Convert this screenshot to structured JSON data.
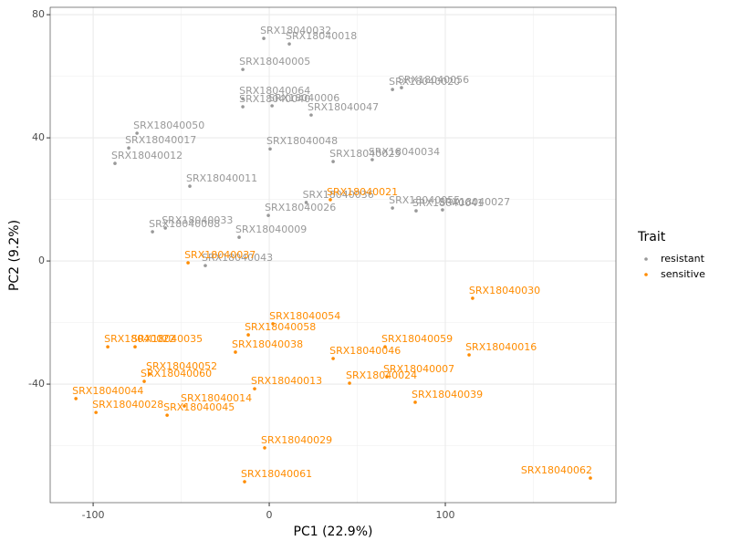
{
  "chart_data": {
    "type": "scatter",
    "xlabel": "PC1 (22.9%)",
    "ylabel": "PC2 (9.2%)",
    "legend_title": "Trait",
    "legend_position": "right",
    "grid": true,
    "xlim": [
      -124.4,
      196.9
    ],
    "ylim": [
      -78.5,
      82.4
    ],
    "xticks": [
      -100,
      0,
      100
    ],
    "yticks": [
      -40,
      0,
      40,
      80
    ],
    "series": [
      {
        "name": "resistant",
        "color": "#999999",
        "labels": [
          "SRX18040032",
          "SRX18040018",
          "SRX18040005",
          "SRX18040056",
          "SRX18040020",
          "SRX18040064",
          "SRX18040006",
          "SRX18040040",
          "SRX18040047",
          "SRX18040050",
          "SRX18040017",
          "SRX18040012",
          "SRX18040048",
          "SRX18040034",
          "SRX18040025",
          "SRX18040011",
          "SRX18040036",
          "SRX18040026",
          "SRX18040041",
          "SRX18040027",
          "SRX18040055",
          "SRX18040033",
          "SRX18040008",
          "SRX18040009",
          "SRX18040043"
        ],
        "x": [
          -3.1,
          11.4,
          -15.0,
          75.1,
          70.0,
          -15.0,
          1.6,
          -15.0,
          23.8,
          -75.1,
          -79.8,
          -87.6,
          0.5,
          58.5,
          36.3,
          -45.1,
          21.0,
          -0.5,
          83.4,
          98.4,
          70.0,
          -59.0,
          -66.3,
          -17.1,
          -36.3
        ],
        "values": [
          72.3,
          70.5,
          62.2,
          56.3,
          55.7,
          52.7,
          50.4,
          50.1,
          47.4,
          41.5,
          36.7,
          31.7,
          36.4,
          32.9,
          32.3,
          24.3,
          19.0,
          14.8,
          16.3,
          16.6,
          17.2,
          10.7,
          9.5,
          7.7,
          -1.5
        ]
      },
      {
        "name": "sensitive",
        "color": "#ff8c00",
        "labels": [
          "SRX18040021",
          "SRX18040037",
          "SRX18040030",
          "SRX18040054",
          "SRX18040058",
          "SRX18040059",
          "SRX18040046",
          "SRX18040016",
          "SRX18040038",
          "SRX18040022",
          "SRX18040035",
          "SRX18040052",
          "SRX18040060",
          "SRX18040044",
          "SRX18040028",
          "SRX18040014",
          "SRX18040045",
          "SRX18040013",
          "SRX18040007",
          "SRX18040024",
          "SRX18040039",
          "SRX18040029",
          "SRX18040061",
          "SRX18040062"
        ],
        "x": [
          34.7,
          -46.1,
          115.5,
          2.1,
          -11.9,
          65.8,
          36.3,
          113.5,
          -19.2,
          -91.7,
          -76.2,
          -67.9,
          -71.0,
          -109.8,
          -98.4,
          -48.2,
          -58.0,
          -8.3,
          66.8,
          45.6,
          82.9,
          -2.6,
          -14.0,
          182.4
        ],
        "values": [
          19.9,
          -0.6,
          -12.1,
          -20.4,
          -24.0,
          -27.9,
          -31.7,
          -30.5,
          -29.6,
          -27.9,
          -27.9,
          -36.7,
          -39.1,
          -44.7,
          -49.2,
          -47.1,
          -50.1,
          -41.5,
          -37.6,
          -39.7,
          -45.9,
          -60.7,
          -71.7,
          -70.5
        ]
      }
    ]
  }
}
